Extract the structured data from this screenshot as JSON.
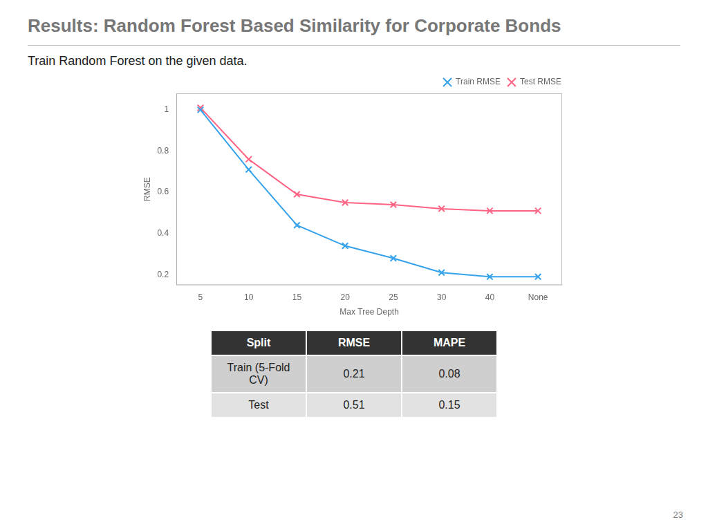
{
  "chart_data": {
    "type": "line",
    "title": "Results: Random Forest Based Similarity for Corporate Bonds",
    "subtitle": "Train Random Forest on the given data.",
    "x_label": "Max Tree Depth",
    "y_label": "RMSE",
    "categories": [
      "5",
      "10",
      "15",
      "20",
      "25",
      "30",
      "40",
      "None"
    ],
    "series": [
      {
        "name": "Train RMSE",
        "values": [
          1.0,
          0.71,
          0.44,
          0.34,
          0.28,
          0.21,
          0.19,
          0.19
        ],
        "marker": "x",
        "line_style": "solid"
      },
      {
        "name": "Test RMSE",
        "values": [
          1.01,
          0.76,
          0.59,
          0.55,
          0.54,
          0.52,
          0.51,
          0.51
        ],
        "marker": "x",
        "line_style": "solid"
      }
    ],
    "ylim": [
      0.15,
      1.08
    ],
    "yticks": [
      0.2,
      0.4,
      0.6,
      0.8,
      1.0
    ],
    "grid": false,
    "legend": "upper right",
    "table": {
      "headers": [
        "Split",
        "RMSE",
        "MAPE"
      ],
      "rows": [
        [
          "Train (5-Fold\nCV)",
          "0.21",
          "0.08"
        ],
        [
          "Test",
          "0.51",
          "0.15"
        ]
      ]
    },
    "page_number": "23"
  }
}
